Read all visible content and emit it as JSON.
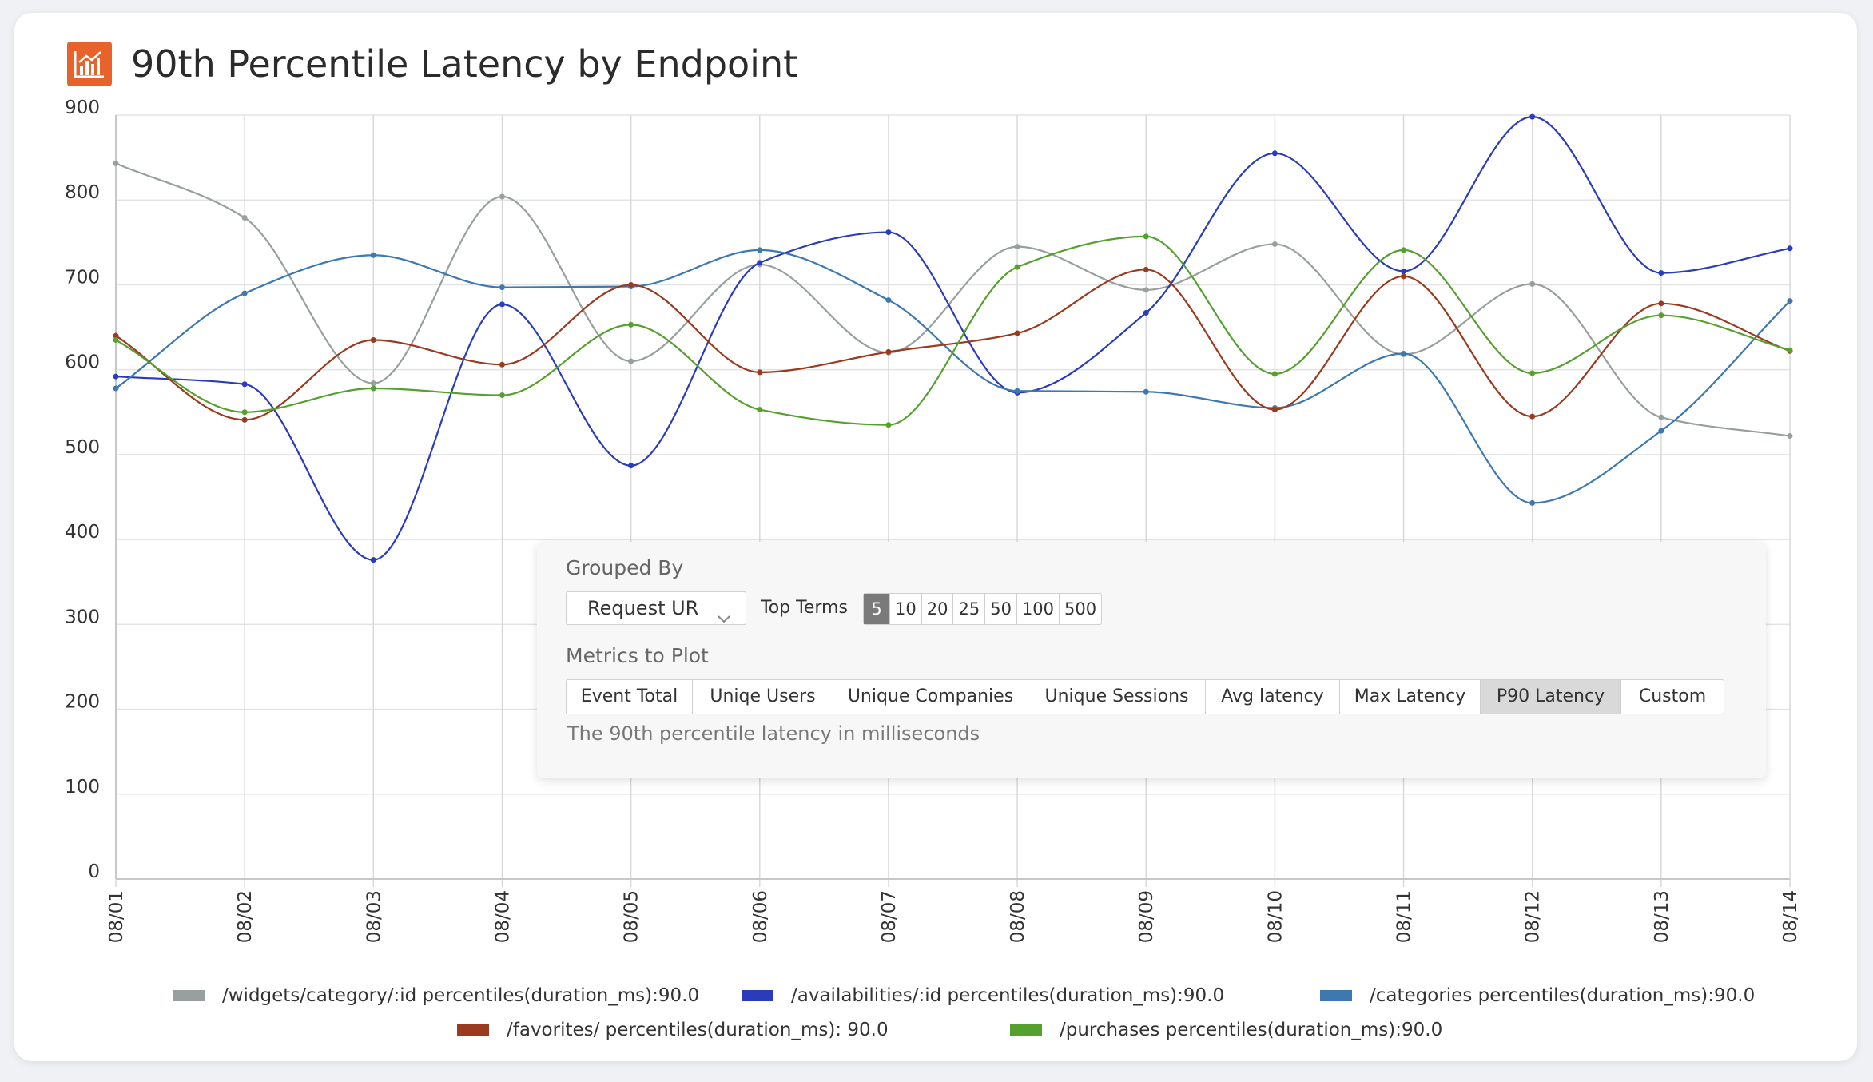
{
  "page": {
    "title": "90th Percentile Latency by Endpoint",
    "title_icon": "bar-chart-icon",
    "accent_color": "#e8622c"
  },
  "chart_data": {
    "type": "line",
    "title": "90th Percentile Latency by Endpoint",
    "xlabel": "",
    "ylabel": "",
    "ylim": [
      0,
      900
    ],
    "yticks": [
      "0",
      "100",
      "200",
      "300",
      "400",
      "500",
      "600",
      "700",
      "800",
      "900"
    ],
    "categories": [
      "08/01",
      "08/02",
      "08/03",
      "08/04",
      "08/05",
      "08/06",
      "08/07",
      "08/08",
      "08/09",
      "08/10",
      "08/11",
      "08/12",
      "08/13",
      "08/14"
    ],
    "grid": true,
    "smooth": true,
    "legend_position": "bottom",
    "series": [
      {
        "name": "/widgets/category/:id percentiles(duration_ms):90.0",
        "color": "#97a09e",
        "values": [
          843,
          779,
          584,
          804,
          610,
          724,
          620,
          745,
          694,
          748,
          618,
          701,
          544,
          522
        ]
      },
      {
        "name": "/availabilities/:id percentiles(duration_ms):90.0",
        "color": "#2b3cbb",
        "values": [
          592,
          583,
          376,
          677,
          487,
          726,
          762,
          573,
          667,
          855,
          716,
          898,
          714,
          743
        ]
      },
      {
        "name": "/categories percentiles(duration_ms):90.0",
        "color": "#3d79b0",
        "values": [
          578,
          690,
          735,
          697,
          698,
          741,
          682,
          575,
          574,
          555,
          619,
          443,
          528,
          681
        ]
      },
      {
        "name": "/favorites/ percentiles(duration_ms): 90.0",
        "color": "#9a3a1f",
        "values": [
          640,
          541,
          635,
          606,
          700,
          597,
          621,
          643,
          718,
          553,
          710,
          545,
          678,
          622
        ]
      },
      {
        "name": "/purchases percentiles(duration_ms):90.0",
        "color": "#56a02f",
        "values": [
          635,
          550,
          578,
          570,
          653,
          553,
          535,
          721,
          757,
          595,
          741,
          596,
          664,
          623
        ]
      }
    ]
  },
  "controls": {
    "grouped_by_label": "Grouped By",
    "grouped_by_value": "Request UR",
    "top_terms_label": "Top Terms",
    "top_terms": [
      "5",
      "10",
      "20",
      "25",
      "50",
      "100",
      "500"
    ],
    "top_terms_selected": "5",
    "metrics_label": "Metrics to Plot",
    "metrics": [
      "Event Total",
      "Uniqe Users",
      "Unique Companies",
      "Unique Sessions",
      "Avg latency",
      "Max Latency",
      "P90 Latency",
      "Custom"
    ],
    "metrics_selected": "P90 Latency",
    "metric_description": "The 90th percentile latency in milliseconds"
  }
}
